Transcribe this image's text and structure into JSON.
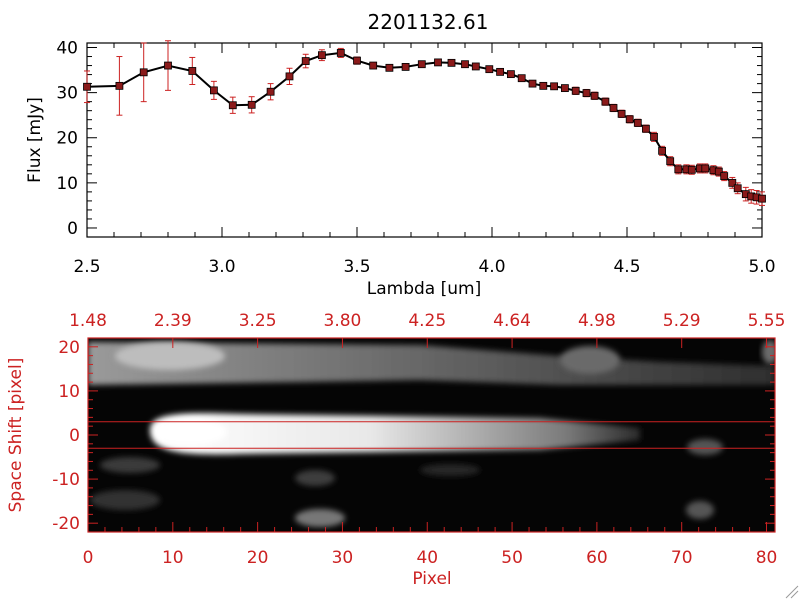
{
  "chart_data": [
    {
      "type": "line",
      "title": "2201132.61",
      "xlabel": "Lambda [um]",
      "ylabel": "Flux [mJy]",
      "xlim": [
        2.5,
        5.0
      ],
      "ylim": [
        -2,
        41
      ],
      "xticks": [
        "2.5",
        "3.0",
        "3.5",
        "4.0",
        "4.5",
        "5.0"
      ],
      "xtick_values": [
        2.5,
        3.0,
        3.5,
        4.0,
        4.5,
        5.0
      ],
      "yticks": [
        "0",
        "10",
        "20",
        "30",
        "40"
      ],
      "ytick_values": [
        0,
        10,
        20,
        30,
        40
      ],
      "line_color": "#000000",
      "marker_color": "#8b1a1a",
      "errorbar_color": "#cc2222",
      "series": [
        {
          "x": [
            2.5,
            2.62,
            2.71,
            2.8,
            2.89,
            2.97,
            3.04,
            3.11,
            3.18,
            3.25,
            3.31,
            3.37,
            3.44,
            3.5,
            3.56,
            3.62,
            3.68,
            3.74,
            3.8,
            3.85,
            3.9,
            3.94,
            3.99,
            4.03,
            4.07,
            4.11,
            4.15,
            4.19,
            4.23,
            4.27,
            4.31,
            4.35,
            4.38,
            4.42,
            4.45,
            4.48,
            4.51,
            4.54,
            4.57,
            4.6,
            4.63,
            4.66,
            4.69,
            4.72,
            4.74,
            4.77,
            4.79,
            4.82,
            4.84,
            4.86,
            4.89,
            4.91,
            4.94,
            4.96,
            4.98,
            5.0
          ],
          "y": [
            31.3,
            31.5,
            34.5,
            36.0,
            34.8,
            30.5,
            27.2,
            27.3,
            30.2,
            33.6,
            37.0,
            38.3,
            38.8,
            37.1,
            36.0,
            35.5,
            35.7,
            36.3,
            36.7,
            36.6,
            36.3,
            35.8,
            35.2,
            34.6,
            34.1,
            33.2,
            32.0,
            31.5,
            31.4,
            31.0,
            30.4,
            29.9,
            29.3,
            28.0,
            26.6,
            25.3,
            24.1,
            23.3,
            22.0,
            20.2,
            17.1,
            14.8,
            13.0,
            13.0,
            12.9,
            13.2,
            13.2,
            12.8,
            12.5,
            11.5,
            10.0,
            8.8,
            7.5,
            7.0,
            6.8,
            6.5
          ],
          "yerr": [
            3.5,
            6.5,
            6.5,
            5.5,
            3.0,
            2.0,
            1.8,
            1.8,
            1.8,
            1.8,
            1.5,
            1.2,
            1.0,
            0.8,
            0.6,
            0.6,
            0.6,
            0.6,
            0.6,
            0.6,
            0.6,
            0.6,
            0.6,
            0.6,
            0.6,
            0.6,
            0.6,
            0.6,
            0.6,
            0.6,
            0.8,
            0.8,
            0.8,
            0.8,
            0.8,
            0.8,
            0.8,
            0.8,
            0.8,
            1.0,
            1.0,
            1.0,
            1.0,
            1.0,
            1.0,
            1.0,
            1.0,
            1.0,
            1.0,
            1.0,
            1.2,
            1.2,
            1.5,
            1.5,
            1.5,
            1.5
          ]
        }
      ]
    },
    {
      "type": "heatmap",
      "xlabel": "Pixel",
      "ylabel": "Space Shift [pixel]",
      "xlim": [
        0,
        81
      ],
      "ylim": [
        -22,
        22
      ],
      "xticks": [
        "0",
        "10",
        "20",
        "30",
        "40",
        "50",
        "60",
        "70",
        "80"
      ],
      "xtick_values": [
        0,
        10,
        20,
        30,
        40,
        50,
        60,
        70,
        80
      ],
      "top_ticks": [
        "1.48",
        "2.39",
        "3.25",
        "3.80",
        "4.25",
        "4.64",
        "4.98",
        "5.29",
        "5.55"
      ],
      "yticks": [
        "-20",
        "-10",
        "0",
        "10",
        "20"
      ],
      "ytick_values": [
        -20,
        -10,
        0,
        10,
        20
      ],
      "extraction_window": [
        -3,
        3
      ],
      "axis_color": "#cc2222",
      "colormap": "grayscale"
    }
  ]
}
